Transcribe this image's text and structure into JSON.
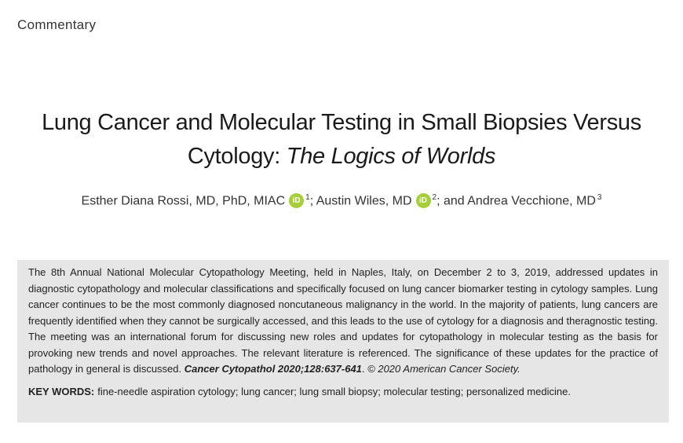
{
  "header": {
    "section": "Commentary"
  },
  "title": {
    "main": "Lung Cancer and Molecular Testing in Small Biopsies Versus Cytology: ",
    "subtitle": "The Logics of Worlds"
  },
  "authors": {
    "list": [
      {
        "name": "Esther Diana Rossi, MD, PhD, MIAC",
        "orcid": "iD",
        "affiliation": "1"
      },
      {
        "name": "Austin Wiles, MD",
        "orcid": "iD",
        "affiliation": "2"
      },
      {
        "name": "Andrea Vecchione, MD",
        "affiliation": "3"
      }
    ],
    "separators": [
      "; ",
      "; and "
    ]
  },
  "abstract": {
    "text": "The 8th Annual National Molecular Cytopathology Meeting, held in Naples, Italy, on December 2 to 3, 2019, addressed updates in diagnostic cytopathology and molecular classifications and specifically focused on lung cancer biomarker testing in cytology samples. Lung cancer continues to be the most commonly diagnosed noncutaneous malignancy in the world. In the majority of patients, lung cancers are frequently identified when they cannot be surgically accessed, and this leads to the use of cytology for a diagnosis and theragnostic testing. The meeting was an international forum for discussing new roles and updates for cytopathology in molecular testing as the basis for provoking new trends and novel approaches. The relevant literature is referenced. The significance of these updates for the practice of pathology in general is discussed.",
    "citation": "Cancer Cytopathol 2020;128:637-641",
    "citation_separator": ". ",
    "copyright": "© 2020 American Cancer Society.",
    "keywords_label": "KEY WORDS:",
    "keywords": "fine-needle aspiration cytology; lung cancer; lung small biopsy; molecular testing; personalized medicine."
  }
}
